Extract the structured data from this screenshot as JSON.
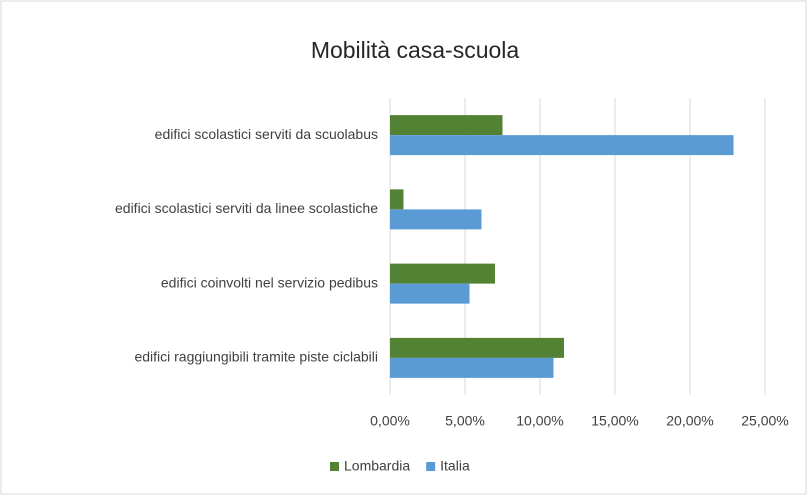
{
  "chart_data": {
    "type": "bar",
    "orientation": "horizontal",
    "title": "Mobilità casa-scuola",
    "categories": [
      "edifici scolastici serviti da scuolabus",
      "edifici scolastici serviti da linee scolastiche",
      "edifici coinvolti nel servizio pedibus",
      "edifici raggiungibili tramite piste ciclabili"
    ],
    "series": [
      {
        "name": "Lombardia",
        "color": "#548235",
        "values": [
          7.5,
          0.9,
          7.0,
          11.6
        ]
      },
      {
        "name": "Italia",
        "color": "#5b9bd5",
        "values": [
          22.9,
          6.1,
          5.3,
          10.9
        ]
      }
    ],
    "xlim": [
      0,
      25
    ],
    "xticks": [
      {
        "value": 0,
        "label": "0,00%"
      },
      {
        "value": 5,
        "label": "5,00%"
      },
      {
        "value": 10,
        "label": "10,00%"
      },
      {
        "value": 15,
        "label": "15,00%"
      },
      {
        "value": 20,
        "label": "20,00%"
      },
      {
        "value": 25,
        "label": "25,00%"
      }
    ],
    "grid": true,
    "legend": "bottom"
  }
}
